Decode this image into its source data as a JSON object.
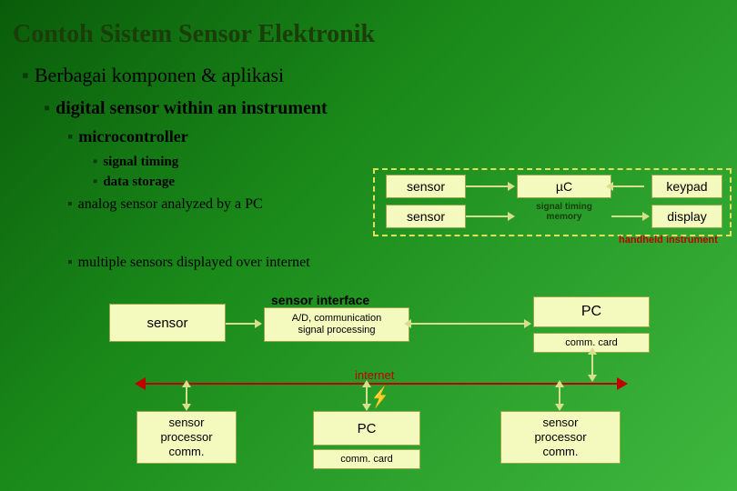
{
  "title": "Contoh Sistem Sensor Elektronik",
  "bullets": {
    "b1": "Berbagai komponen & aplikasi",
    "b2": "digital sensor within an instrument",
    "b3": "microcontroller",
    "b4a": "signal timing",
    "b4b": "data storage",
    "b5": "analog sensor analyzed by a PC",
    "b6": "multiple sensors displayed over internet"
  },
  "instrument": {
    "sensor1": "sensor",
    "sensor2": "sensor",
    "uc": "µC",
    "stm": "signal timing\nmemory",
    "keypad": "keypad",
    "display": "display",
    "label": "handheld instrument",
    "dash_color": "#e0e05a"
  },
  "mid": {
    "sensor": "sensor",
    "si_title": "sensor interface",
    "si_sub": "A/D, communication\nsignal processing",
    "pc": "PC",
    "comm": "comm. card"
  },
  "internet": {
    "label": "internet",
    "line_color": "#c00000"
  },
  "bottom": {
    "left": "sensor\nprocessor\ncomm.",
    "pc": "PC",
    "pc_comm": "comm. card",
    "right": "sensor\nprocessor\ncomm."
  },
  "style": {
    "box_bg": "#f4fabe",
    "box_border": "#95a84e",
    "title_color": "#1a3d0a",
    "bg_gradient": [
      "#0a5c0a",
      "#1a8a1a",
      "#3fb83f"
    ],
    "fontsizes": {
      "title": 28,
      "b1": 22,
      "b2": 20,
      "b3": 18,
      "b4": 15,
      "b5": 16
    }
  }
}
